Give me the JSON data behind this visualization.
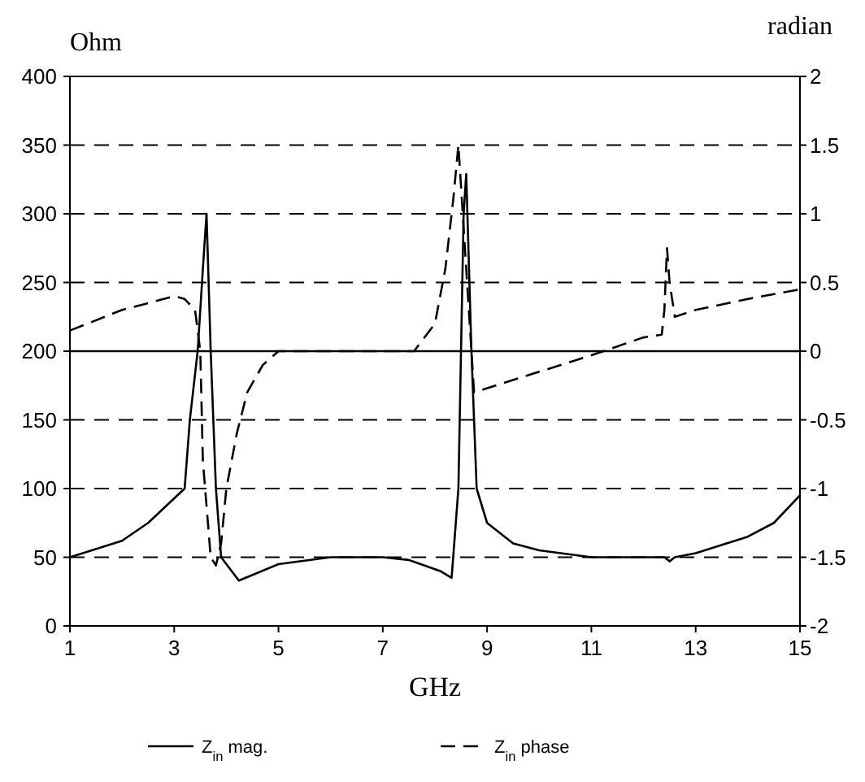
{
  "chart_data": {
    "type": "line",
    "xlabel": "GHz",
    "ylabel": "Ohm",
    "y2label": "radian",
    "xlim": [
      1,
      15
    ],
    "xticks": [
      1,
      3,
      5,
      7,
      9,
      11,
      13,
      15
    ],
    "ylim": [
      0,
      400
    ],
    "yticks": [
      0,
      50,
      100,
      150,
      200,
      250,
      300,
      350,
      400
    ],
    "y2lim": [
      -2,
      2
    ],
    "y2ticks": [
      -2,
      -1.5,
      -1,
      -0.5,
      0,
      0.5,
      1,
      1.5,
      2
    ],
    "grid": "y",
    "legend": "bottom",
    "ref_lines": [
      {
        "axis": "y2",
        "value": 0,
        "line_style": "solid"
      }
    ],
    "series": [
      {
        "name": "Z$_{in}$ mag.",
        "color": "#000000",
        "line_style": "solid",
        "x": [
          1,
          2,
          2.5,
          3.2,
          3.3,
          3.45,
          3.55,
          3.62,
          3.7,
          3.8,
          3.9,
          4.24,
          5,
          6,
          7,
          7.5,
          8.1,
          8.32,
          8.45,
          8.55,
          8.6,
          8.7,
          8.8,
          9,
          9.5,
          10,
          11,
          12,
          12.4,
          12.5,
          12.6,
          13,
          14,
          14.5,
          15
        ],
        "values": [
          50,
          62,
          75,
          100,
          150,
          200,
          260,
          300,
          200,
          100,
          50,
          33,
          45,
          50,
          50,
          48,
          40,
          35,
          100,
          300,
          329,
          200,
          100,
          75,
          60,
          55,
          50,
          50,
          50,
          47,
          50,
          53,
          65,
          75,
          95
        ]
      },
      {
        "name": "Z$_{in}$ phase",
        "color": "#000000",
        "line_style": "dashed",
        "axis": "y2",
        "x": [
          1,
          2,
          3,
          3.2,
          3.4,
          3.5,
          3.55,
          3.7,
          3.8,
          3.9,
          4,
          4.2,
          4.4,
          4.7,
          5,
          6,
          7,
          7.6,
          8,
          8.2,
          8.35,
          8.45,
          8.5,
          8.75,
          10,
          11,
          12,
          12.35,
          12.4,
          12.45,
          12.5,
          12.6,
          13,
          14,
          15
        ],
        "values": [
          0.15,
          0.3,
          0.4,
          0.38,
          0.3,
          0,
          -0.8,
          -1.5,
          -1.56,
          -1.4,
          -1,
          -0.6,
          -0.3,
          -0.1,
          0,
          0,
          0,
          0,
          0.2,
          0.6,
          1.1,
          1.5,
          1.2,
          -0.3,
          -0.15,
          -0.03,
          0.1,
          0.12,
          0.3,
          0.75,
          0.5,
          0.25,
          0.3,
          0.38,
          0.45
        ]
      }
    ]
  }
}
